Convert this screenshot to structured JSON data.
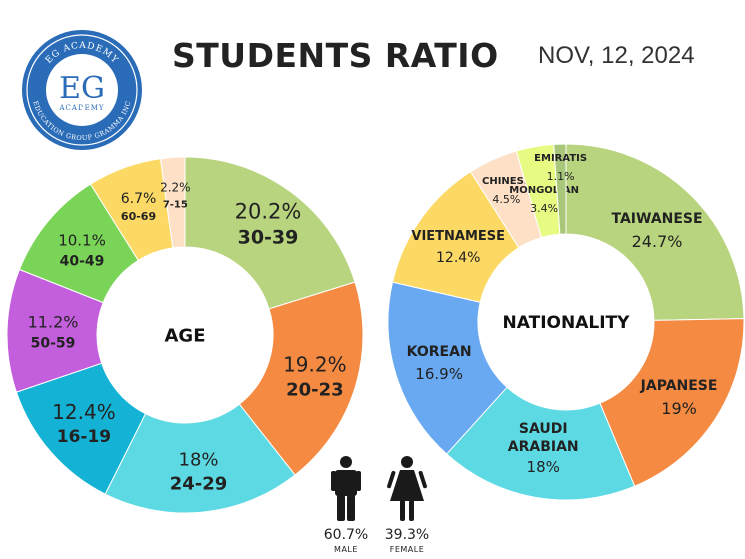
{
  "header": {
    "title": "STUDENTS RATIO",
    "date": "NOV, 12, 2024"
  },
  "logo": {
    "top_text": "EG ACADEMY",
    "initials": "EG",
    "middle_text": "ACADEMY",
    "ring_text": "EDUCATION GROUP GRAMMA INC"
  },
  "chart_data": [
    {
      "type": "pie",
      "title": "AGE",
      "slices": [
        {
          "label": "30-39",
          "value": 20.2,
          "pct_text": "20.2%",
          "color": "#b8d47e"
        },
        {
          "label": "20-23",
          "value": 19.2,
          "pct_text": "19.2%",
          "color": "#f58a42"
        },
        {
          "label": "24-29",
          "value": 18,
          "pct_text": "18%",
          "color": "#5dd9e3"
        },
        {
          "label": "16-19",
          "value": 12.4,
          "pct_text": "12.4%",
          "color": "#14b3d6"
        },
        {
          "label": "50-59",
          "value": 11.2,
          "pct_text": "11.2%",
          "color": "#c35fdc"
        },
        {
          "label": "40-49",
          "value": 10.1,
          "pct_text": "10.1%",
          "color": "#79d457"
        },
        {
          "label": "60-69",
          "value": 6.7,
          "pct_text": "6.7%",
          "color": "#fcd965"
        },
        {
          "label": "7-15",
          "value": 2.2,
          "pct_text": "2.2%",
          "color": "#fde0c6"
        }
      ]
    },
    {
      "type": "pie",
      "title": "NATIONALITY",
      "slices": [
        {
          "label": "TAIWANESE",
          "value": 24.7,
          "pct_text": "24.7%",
          "color": "#b8d47e"
        },
        {
          "label": "JAPANESE",
          "value": 19,
          "pct_text": "19%",
          "color": "#f58a42"
        },
        {
          "label": "SAUDI ARABIAN",
          "value": 18,
          "pct_text": "18%",
          "color": "#5dd9e3"
        },
        {
          "label": "KOREAN",
          "value": 16.9,
          "pct_text": "16.9%",
          "color": "#68a9f2"
        },
        {
          "label": "VIETNAMESE",
          "value": 12.4,
          "pct_text": "12.4%",
          "color": "#fcd965"
        },
        {
          "label": "CHINESE",
          "value": 4.5,
          "pct_text": "4.5%",
          "color": "#fde0c6"
        },
        {
          "label": "MONGOLIAN",
          "value": 3.4,
          "pct_text": "3.4%",
          "color": "#e7fb82"
        },
        {
          "label": "EMIRATIS",
          "value": 1.1,
          "pct_text": "1.1%",
          "color": "#a8c77a"
        }
      ]
    }
  ],
  "gender": {
    "male": {
      "value": 60.7,
      "pct_text": "60.7%",
      "label": "MALE",
      "icon": "male-person-icon"
    },
    "female": {
      "value": 39.3,
      "pct_text": "39.3%",
      "label": "FEMALE",
      "icon": "female-person-icon"
    }
  },
  "colors": {
    "icon": "#1a1a1a",
    "logo_blue": "#2b6cb8"
  }
}
